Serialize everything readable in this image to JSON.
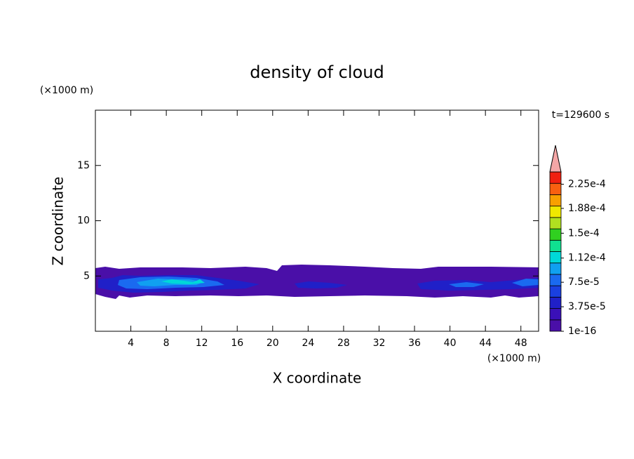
{
  "chart_data": {
    "type": "contour",
    "title": "density of cloud",
    "x_label": "X coordinate",
    "y_label": "Z coordinate",
    "x_unit": "(×1000 m)",
    "y_unit": "(×1000 m)",
    "time_label": "t=129600 s",
    "xlim": [
      0,
      50
    ],
    "ylim": [
      0,
      20
    ],
    "xticks": [
      4,
      8,
      12,
      16,
      20,
      24,
      28,
      32,
      36,
      40,
      44,
      48
    ],
    "yticks": [
      5,
      10,
      15
    ],
    "colorbar": {
      "lim": [
        1e-16,
        0.00024375
      ],
      "ticks": [
        {
          "value": 1e-16,
          "label": "1e-16"
        },
        {
          "value": 3.75e-05,
          "label": "3.75e-5"
        },
        {
          "value": 7.5e-05,
          "label": "7.5e-5"
        },
        {
          "value": 0.000112,
          "label": "1.12e-4"
        },
        {
          "value": 0.00015,
          "label": "1.5e-4"
        },
        {
          "value": 0.000188,
          "label": "1.88e-4"
        },
        {
          "value": 0.000225,
          "label": "2.25e-4"
        }
      ],
      "colors": [
        "#4a0fa8",
        "#3a10b8",
        "#2020c8",
        "#1a40e0",
        "#1a6af0",
        "#10a0f0",
        "#00d8d8",
        "#10e090",
        "#30d020",
        "#b0e020",
        "#f0e800",
        "#f8a000",
        "#f86010",
        "#f02010"
      ],
      "extend_color": "#f4a6a6"
    }
  }
}
